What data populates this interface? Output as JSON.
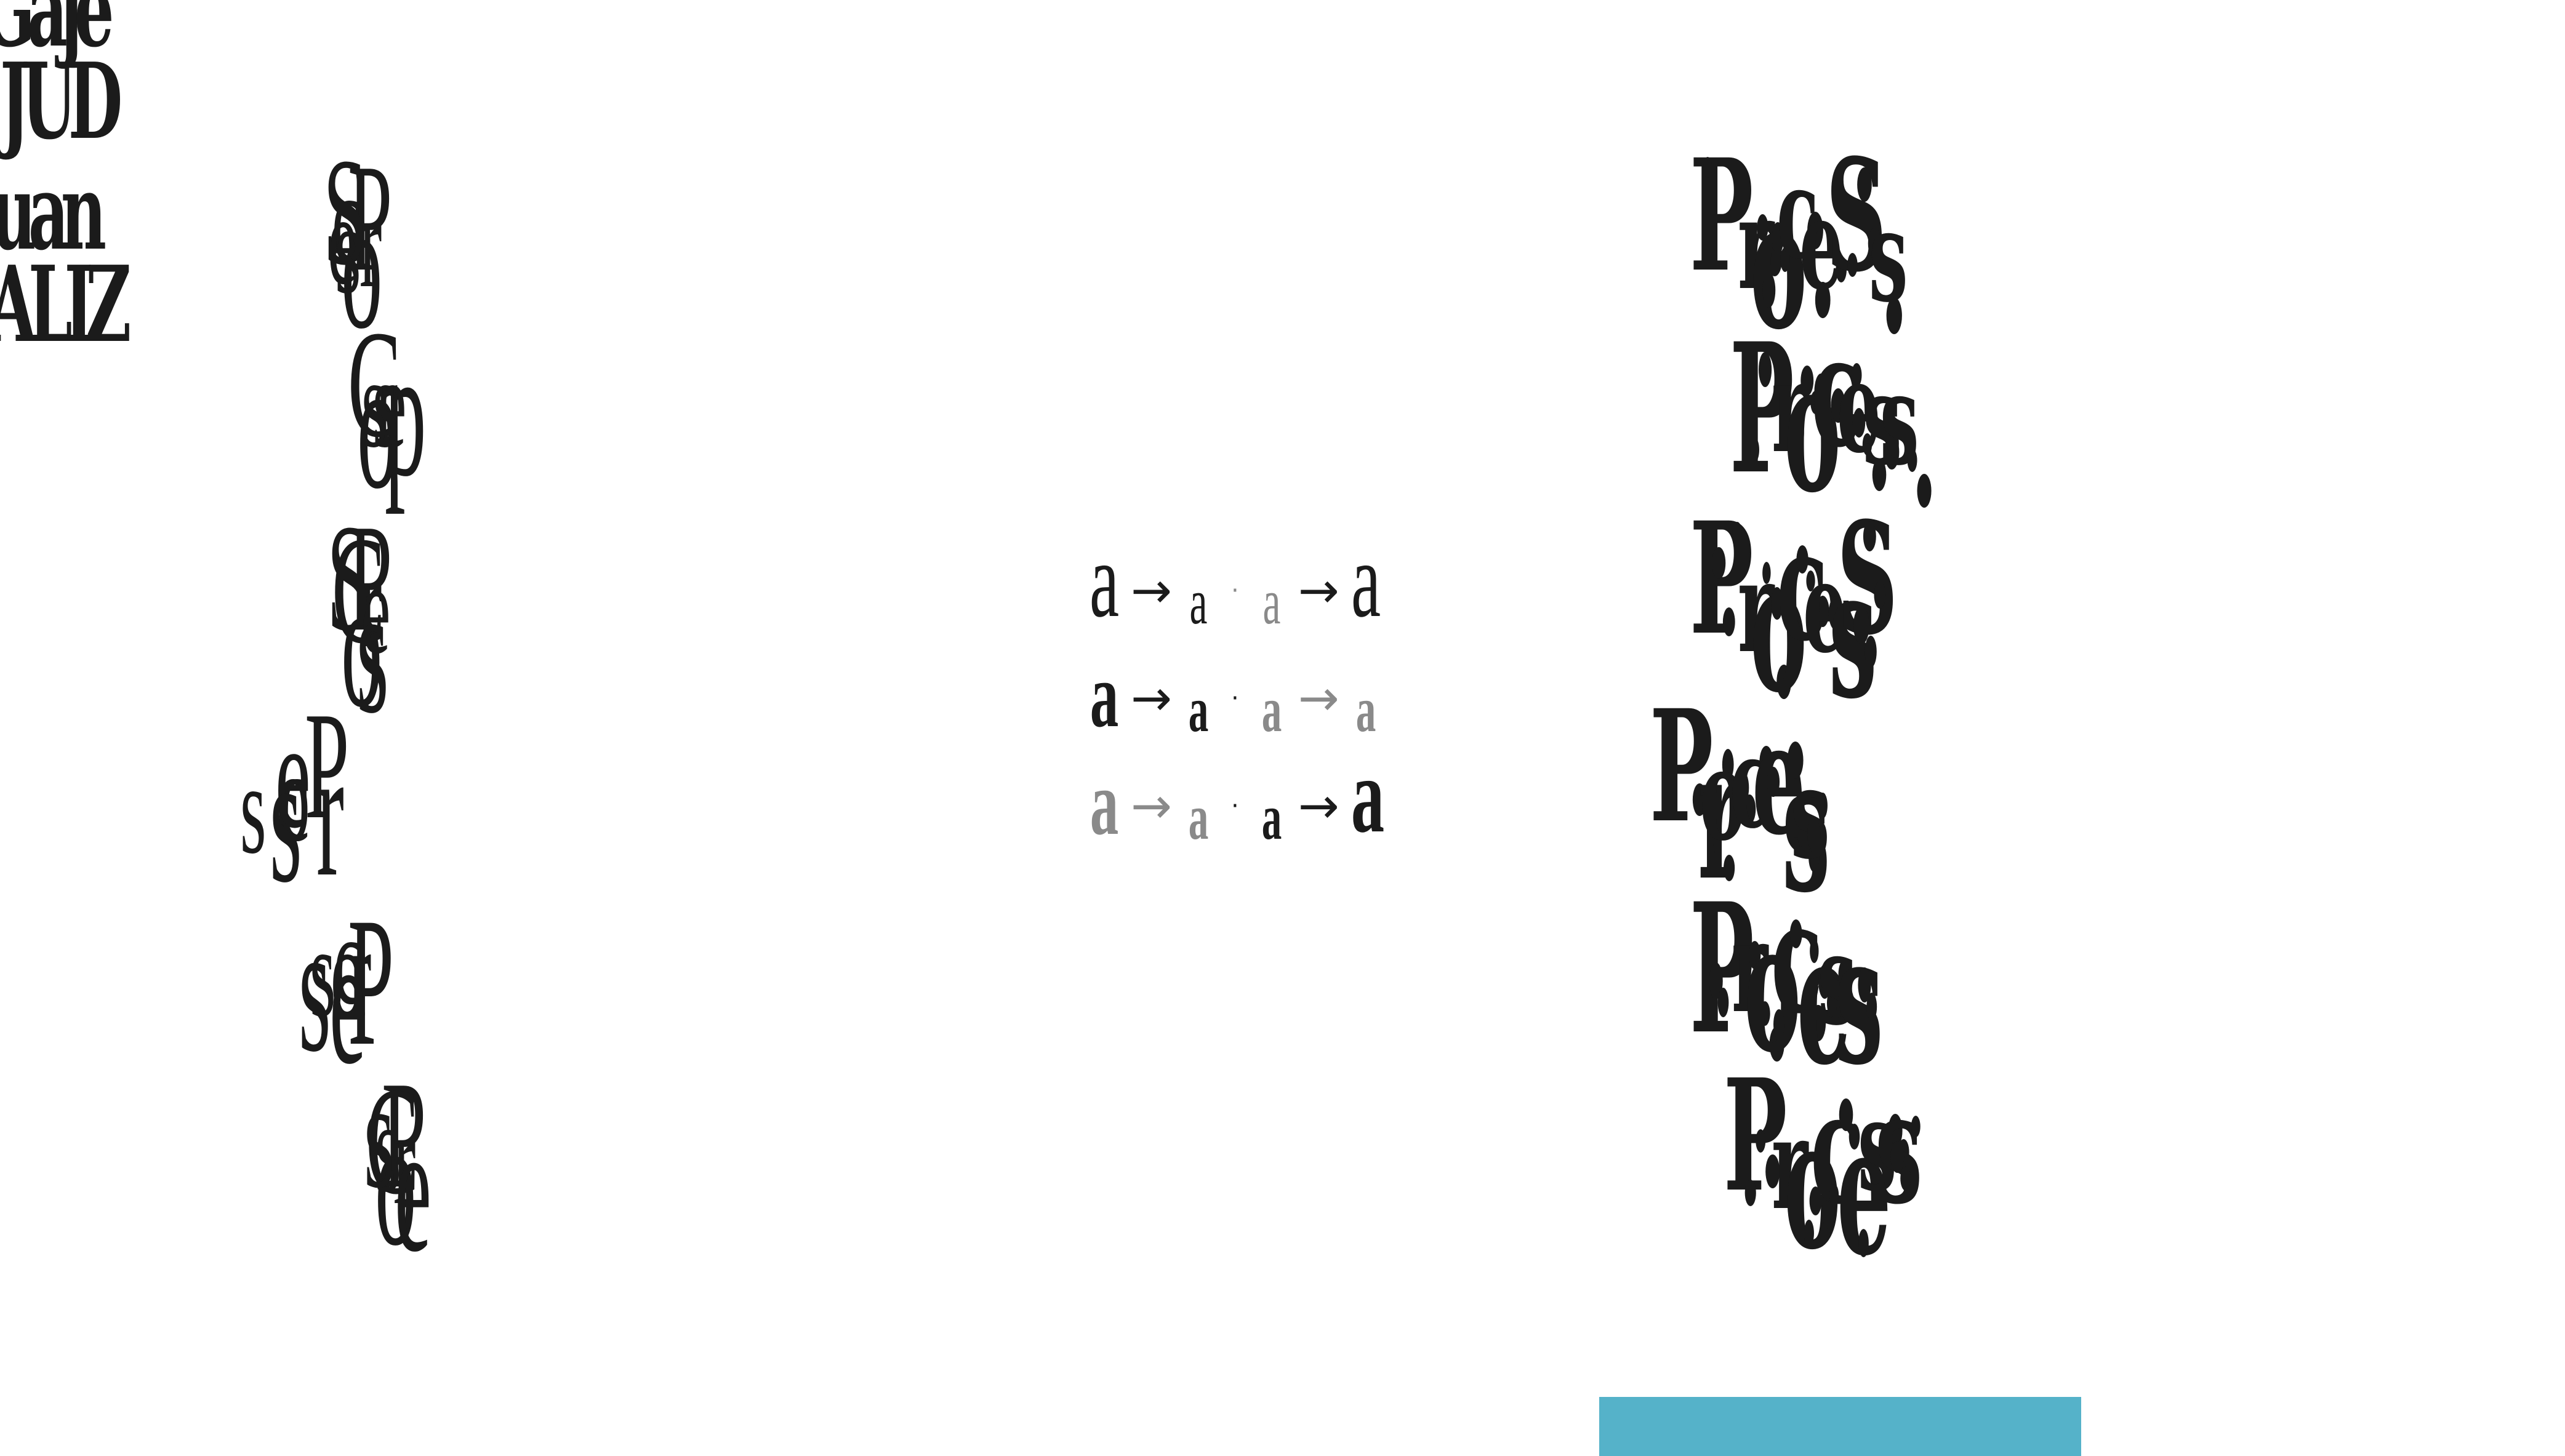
{
  "corner_specimen": {
    "lines": [
      "Gaje",
      "JUD",
      "uan",
      "ALIZ"
    ]
  },
  "left_column": {
    "words": [
      [
        "P",
        "r",
        "o",
        "c",
        "e",
        "S",
        "s"
      ],
      [
        "p",
        "r",
        "o",
        "C",
        "e",
        "s",
        "s"
      ],
      [
        "P",
        "r",
        "o",
        "C",
        "e",
        "s",
        "S"
      ],
      [
        "P",
        "r",
        "o",
        "c",
        "e",
        "s",
        "s"
      ],
      [
        "P",
        "r",
        "o",
        "c",
        "e",
        "s",
        "s"
      ],
      [
        "P",
        "r",
        "o",
        "C",
        "e",
        "s",
        "s"
      ]
    ]
  },
  "diagram": {
    "row1": {
      "g1": "a",
      "g2": "a",
      "g3": "a",
      "g4": "a"
    },
    "row2": {
      "g1": "a",
      "g2": "a",
      "g3": "a",
      "g4": "a"
    },
    "row3": {
      "g1": "a",
      "g2": "a",
      "g3": "a",
      "g4": "a"
    },
    "arrow": "→",
    "dot": "·",
    "colors": {
      "dark": "#1b1b1b",
      "gray": "#8a8a8a"
    }
  },
  "right_column": {
    "words": [
      [
        "P",
        "r",
        "o",
        "c",
        "e",
        "S",
        "s"
      ],
      [
        "P",
        "r",
        "o",
        "c",
        "e",
        "s",
        "s"
      ],
      [
        "P",
        "r",
        "o",
        "c",
        "e",
        "s",
        "S"
      ],
      [
        "P",
        "r",
        "o",
        "c",
        "e",
        "s",
        "s"
      ],
      [
        "P",
        "r",
        "o",
        "c",
        "e",
        "s",
        "s"
      ],
      [
        "P",
        "r",
        "o",
        "c",
        "e",
        "s",
        "s"
      ]
    ]
  },
  "accent": {
    "blue_bar": "#55b2c9"
  }
}
